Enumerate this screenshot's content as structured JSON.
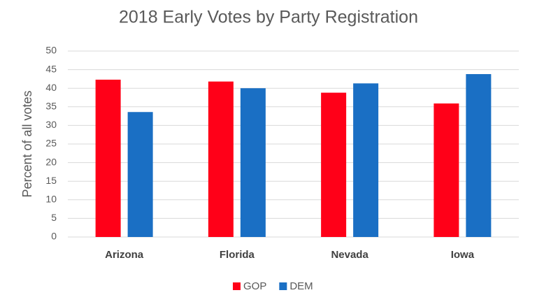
{
  "chart_data": {
    "type": "bar",
    "title": "2018 Early Votes by Party Registration",
    "y_label": "Percent of all votes",
    "categories": [
      "Arizona",
      "Florida",
      "Nevada",
      "Iowa"
    ],
    "series": [
      {
        "name": "GOP",
        "color": "#ff0018",
        "values": [
          42.3,
          41.8,
          38.8,
          35.9
        ]
      },
      {
        "name": "DEM",
        "color": "#1a6fc4",
        "values": [
          33.6,
          40.0,
          41.3,
          43.8
        ]
      }
    ],
    "ylim": [
      0,
      50
    ],
    "yticks": [
      0,
      5,
      10,
      15,
      20,
      25,
      30,
      35,
      40,
      45,
      50
    ],
    "grid": true,
    "legend": "bottom"
  }
}
